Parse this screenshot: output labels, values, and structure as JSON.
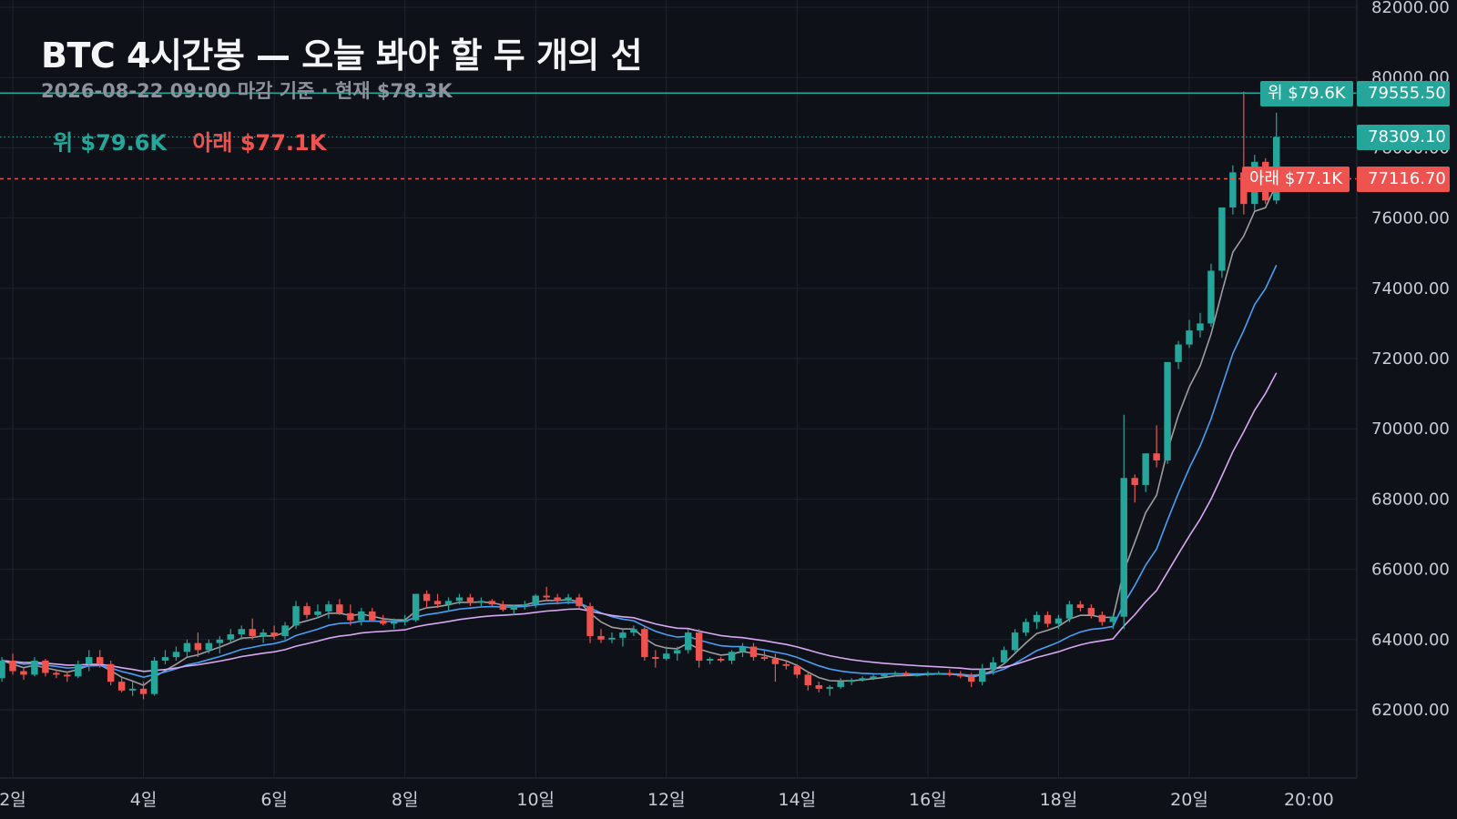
{
  "title": "BTC 4시간봉 — 오늘 봐야 할 두 개의 선",
  "subtitle": "2026-08-22 09:00 마감 기준 · 현재 $78.3K",
  "legend": {
    "upper": "위 $79.6K",
    "lower": "아래 $77.1K"
  },
  "tags": {
    "upper": "위 $79.6K",
    "lower": "아래 $77.1K",
    "upper_price": "79555.50",
    "current_price": "78309.10",
    "lower_price": "77116.70"
  },
  "colors": {
    "background": "#0e1118",
    "up": "#26a69a",
    "down": "#ef5350",
    "ma_fast": "#9e9e9e",
    "ma_mid": "#4a9ff5",
    "ma_slow": "#d8a8f2",
    "grid": "#1f232d"
  },
  "chart_data": {
    "type": "candlestick",
    "y_ticks": [
      "62000.00",
      "64000.00",
      "66000.00",
      "68000.00",
      "70000.00",
      "72000.00",
      "74000.00",
      "76000.00",
      "78000.00",
      "80000.00",
      "82000.00"
    ],
    "ylim": [
      60000,
      82200
    ],
    "x_ticks": [
      {
        "label": "2일",
        "day": 2
      },
      {
        "label": "4일",
        "day": 4
      },
      {
        "label": "6일",
        "day": 6
      },
      {
        "label": "8일",
        "day": 8
      },
      {
        "label": "10일",
        "day": 10
      },
      {
        "label": "12일",
        "day": 12
      },
      {
        "label": "14일",
        "day": 14
      },
      {
        "label": "16일",
        "day": 16
      },
      {
        "label": "18일",
        "day": 18
      },
      {
        "label": "20일",
        "day": 20
      },
      {
        "label": "20:00",
        "day": 21.83
      }
    ],
    "levels": {
      "upper": 79555.5,
      "current": 78309.1,
      "lower": 77116.7
    },
    "candle_interval_hours": 4,
    "candles_ohlc": [
      [
        62900,
        63500,
        62800,
        63400
      ],
      [
        63400,
        63600,
        63000,
        63100
      ],
      [
        63100,
        63200,
        62850,
        63000
      ],
      [
        63000,
        63500,
        62950,
        63400
      ],
      [
        63400,
        63450,
        62950,
        63050
      ],
      [
        63050,
        63150,
        62900,
        63000
      ],
      [
        63000,
        63100,
        62800,
        62950
      ],
      [
        62950,
        63400,
        62900,
        63300
      ],
      [
        63300,
        63700,
        63100,
        63500
      ],
      [
        63500,
        63700,
        63200,
        63300
      ],
      [
        63300,
        63400,
        62700,
        62800
      ],
      [
        62800,
        62900,
        62500,
        62550
      ],
      [
        62550,
        62800,
        62400,
        62600
      ],
      [
        62600,
        62800,
        62300,
        62450
      ],
      [
        62450,
        63500,
        62400,
        63400
      ],
      [
        63400,
        63700,
        63300,
        63500
      ],
      [
        63500,
        63800,
        63400,
        63650
      ],
      [
        63650,
        64000,
        63500,
        63900
      ],
      [
        63900,
        64200,
        63500,
        63700
      ],
      [
        63700,
        64000,
        63600,
        63900
      ],
      [
        63900,
        64100,
        63600,
        64000
      ],
      [
        64000,
        64300,
        63900,
        64150
      ],
      [
        64150,
        64400,
        64000,
        64300
      ],
      [
        64300,
        64600,
        64000,
        64100
      ],
      [
        64100,
        64300,
        63900,
        64200
      ],
      [
        64200,
        64400,
        64000,
        64100
      ],
      [
        64100,
        64500,
        64000,
        64400
      ],
      [
        64400,
        65100,
        64300,
        64950
      ],
      [
        64950,
        65050,
        64600,
        64700
      ],
      [
        64700,
        65000,
        64600,
        64800
      ],
      [
        64800,
        65100,
        64600,
        65000
      ],
      [
        65000,
        65150,
        64700,
        64750
      ],
      [
        64750,
        65000,
        64400,
        64550
      ],
      [
        64550,
        64900,
        64400,
        64800
      ],
      [
        64800,
        64900,
        64500,
        64550
      ],
      [
        64550,
        64700,
        64400,
        64450
      ],
      [
        64450,
        64600,
        64300,
        64500
      ],
      [
        64500,
        64700,
        64400,
        64550
      ],
      [
        64550,
        65300,
        64500,
        65300
      ],
      [
        65300,
        65400,
        64900,
        65100
      ],
      [
        65100,
        65300,
        64900,
        65000
      ],
      [
        65000,
        65200,
        64800,
        65100
      ],
      [
        65100,
        65300,
        65000,
        65200
      ],
      [
        65200,
        65300,
        64950,
        65050
      ],
      [
        65050,
        65200,
        64950,
        65100
      ],
      [
        65100,
        65150,
        64950,
        65000
      ],
      [
        65000,
        65100,
        64800,
        64850
      ],
      [
        64850,
        65000,
        64700,
        64950
      ],
      [
        64950,
        65100,
        64850,
        65000
      ],
      [
        65000,
        65300,
        64900,
        65250
      ],
      [
        65250,
        65500,
        65100,
        65200
      ],
      [
        65200,
        65300,
        65000,
        65100
      ],
      [
        65100,
        65300,
        65000,
        65200
      ],
      [
        65200,
        65300,
        64900,
        64950
      ],
      [
        64950,
        65050,
        63900,
        64100
      ],
      [
        64100,
        64300,
        63900,
        64000
      ],
      [
        64000,
        64200,
        63900,
        64050
      ],
      [
        64050,
        64300,
        63800,
        64200
      ],
      [
        64200,
        64400,
        64100,
        64300
      ],
      [
        64300,
        64400,
        63400,
        63500
      ],
      [
        63500,
        63700,
        63200,
        63450
      ],
      [
        63450,
        63800,
        63400,
        63600
      ],
      [
        63600,
        63800,
        63400,
        63700
      ],
      [
        63700,
        64300,
        63600,
        64200
      ],
      [
        64200,
        64300,
        63200,
        63400
      ],
      [
        63400,
        63500,
        63300,
        63450
      ],
      [
        63450,
        63500,
        63350,
        63400
      ],
      [
        63400,
        63700,
        63300,
        63650
      ],
      [
        63650,
        63900,
        63500,
        63800
      ],
      [
        63800,
        63900,
        63400,
        63500
      ],
      [
        63500,
        63700,
        63400,
        63450
      ],
      [
        63450,
        63600,
        62800,
        63300
      ],
      [
        63300,
        63400,
        63150,
        63250
      ],
      [
        63250,
        63300,
        62900,
        63000
      ],
      [
        63000,
        63100,
        62550,
        62700
      ],
      [
        62700,
        62800,
        62500,
        62600
      ],
      [
        62600,
        62700,
        62400,
        62650
      ],
      [
        62650,
        62900,
        62600,
        62800
      ],
      [
        62800,
        62900,
        62700,
        62850
      ],
      [
        62850,
        62950,
        62800,
        62900
      ],
      [
        62900,
        63000,
        62850,
        62950
      ],
      [
        62950,
        63050,
        62900,
        63000
      ],
      [
        63000,
        63100,
        62950,
        63050
      ],
      [
        63050,
        63100,
        62950,
        63000
      ],
      [
        63000,
        63050,
        62950,
        63000
      ],
      [
        63000,
        63100,
        62950,
        63050
      ],
      [
        63050,
        63100,
        63000,
        63050
      ],
      [
        63050,
        63150,
        62950,
        63000
      ],
      [
        63000,
        63100,
        62900,
        62950
      ],
      [
        62950,
        63050,
        62650,
        62800
      ],
      [
        62800,
        63300,
        62700,
        63150
      ],
      [
        63150,
        63500,
        63000,
        63350
      ],
      [
        63350,
        63800,
        63300,
        63700
      ],
      [
        63700,
        64300,
        63650,
        64200
      ],
      [
        64200,
        64600,
        64100,
        64500
      ],
      [
        64500,
        64800,
        64300,
        64700
      ],
      [
        64700,
        64800,
        64350,
        64450
      ],
      [
        64450,
        64700,
        64300,
        64600
      ],
      [
        64600,
        65100,
        64500,
        65000
      ],
      [
        65000,
        65100,
        64800,
        64900
      ],
      [
        64900,
        65000,
        64600,
        64700
      ],
      [
        64700,
        64800,
        64400,
        64500
      ],
      [
        64500,
        64700,
        64300,
        64650
      ],
      [
        64650,
        70400,
        64300,
        68600
      ],
      [
        68600,
        68700,
        67900,
        68400
      ],
      [
        68400,
        69300,
        68200,
        69300
      ],
      [
        69300,
        70100,
        68900,
        69100
      ],
      [
        69100,
        70000,
        69000,
        71900
      ],
      [
        71900,
        72500,
        71700,
        72400
      ],
      [
        72400,
        73100,
        72300,
        72800
      ],
      [
        72800,
        73300,
        72600,
        73000
      ],
      [
        73000,
        74700,
        72900,
        74500
      ],
      [
        74500,
        75200,
        74300,
        76300
      ],
      [
        76300,
        77500,
        76100,
        77300
      ],
      [
        77300,
        79600,
        76100,
        76400
      ],
      [
        76400,
        77800,
        76200,
        77600
      ],
      [
        77600,
        77700,
        76400,
        76500
      ],
      [
        76500,
        79000,
        76400,
        78309
      ]
    ]
  }
}
